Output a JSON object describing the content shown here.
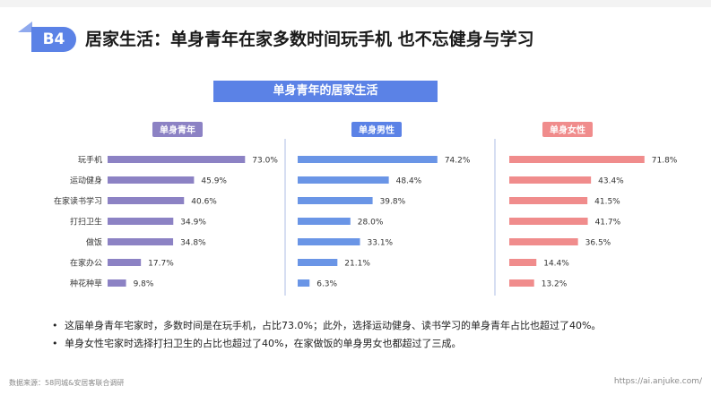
{
  "header": {
    "badge": "B4",
    "title": "居家生活：单身青年在家多数时间玩手机 也不忘健身与学习"
  },
  "chart_title": "单身青年的居家生活",
  "chart_data": [
    {
      "type": "bar",
      "orientation": "horizontal",
      "title": "单身青年",
      "categories": [
        "玩手机",
        "运动健身",
        "在家读书学习",
        "打扫卫生",
        "做饭",
        "在家办公",
        "种花种草"
      ],
      "values": [
        73.0,
        45.9,
        40.6,
        34.9,
        34.8,
        17.7,
        9.8
      ],
      "labels": [
        "73.0%",
        "45.9%",
        "40.6%",
        "34.9%",
        "34.8%",
        "17.7%",
        "9.8%"
      ],
      "unit": "%",
      "color": "#8c82c4",
      "header_color": "#8c82c4"
    },
    {
      "type": "bar",
      "orientation": "horizontal",
      "title": "单身男性",
      "categories": [
        "玩手机",
        "运动健身",
        "在家读书学习",
        "打扫卫生",
        "做饭",
        "在家办公",
        "种花种草"
      ],
      "values": [
        74.2,
        48.4,
        39.8,
        28.0,
        33.1,
        21.1,
        6.3
      ],
      "labels": [
        "74.2%",
        "48.4%",
        "39.8%",
        "28.0%",
        "33.1%",
        "21.1%",
        "6.3%"
      ],
      "unit": "%",
      "color": "#6a95e6",
      "header_color": "#5b82e6"
    },
    {
      "type": "bar",
      "orientation": "horizontal",
      "title": "单身女性",
      "categories": [
        "玩手机",
        "运动健身",
        "在家读书学习",
        "打扫卫生",
        "做饭",
        "在家办公",
        "种花种草"
      ],
      "values": [
        71.8,
        43.4,
        41.5,
        41.7,
        36.5,
        14.4,
        13.2
      ],
      "labels": [
        "71.8%",
        "43.4%",
        "41.5%",
        "41.7%",
        "36.5%",
        "14.4%",
        "13.2%"
      ],
      "unit": "%",
      "color": "#f08c8c",
      "header_color": "#f08c8c"
    }
  ],
  "bullets": [
    "这届单身青年宅家时，多数时间是在玩手机，占比73.0%；此外，选择运动健身、读书学习的单身青年占比也超过了40%。",
    "单身女性宅家时选择打扫卫生的占比也超过了40%，在家做饭的单身男女也都超过了三成。"
  ],
  "footer": {
    "source": "数据来源：58同城&安居客联合调研",
    "url": "https://ai.anjuke.com/"
  }
}
